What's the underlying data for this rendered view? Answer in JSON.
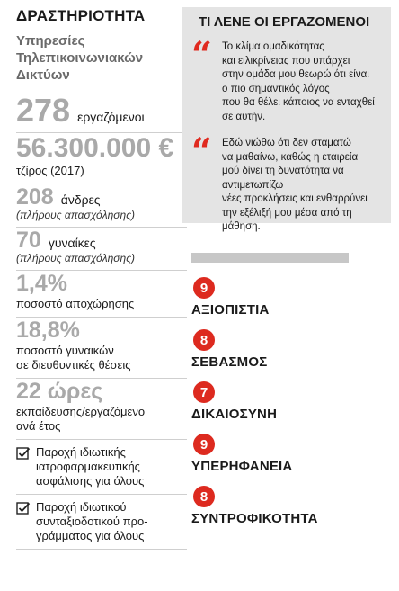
{
  "left": {
    "title": "ΔΡΑΣΤΗΡΙΟΤΗΤΑ",
    "subtitle_lines": [
      "Υπηρεσίες",
      "Τηλεπικοινωνιακών",
      "Δικτύων"
    ],
    "stats": [
      {
        "value": "278",
        "label": "εργαζόμενοι"
      },
      {
        "value": "56.300.000 €",
        "label": "τζίρος (2017)"
      },
      {
        "value": "208",
        "label": "άνδρες",
        "note": "(πλήρους απασχόλησης)"
      },
      {
        "value": "70",
        "label": "γυναίκες",
        "note": "(πλήρους απασχόλησης)"
      },
      {
        "value": "1,4%",
        "label": "ποσοστό αποχώρησης"
      },
      {
        "value": "18,8%",
        "label_lines": [
          "ποσοστό γυναικών",
          "σε διευθυντικές θέσεις"
        ]
      },
      {
        "value": "22 ώρες",
        "label_lines": [
          "εκπαίδευσης/εργαζόμενο",
          "ανά έτος"
        ]
      }
    ],
    "checks": [
      {
        "lines": [
          "Παροχή ιδιωτικής",
          "ιατροφαρμακευτικής",
          "ασφάλισης για όλους"
        ]
      },
      {
        "lines": [
          "Παροχή ιδιωτικού",
          "συνταξιοδοτικού προ-",
          "γράμματος για όλους"
        ]
      }
    ]
  },
  "right": {
    "box_title": "ΤΙ ΛΕΝΕ ΟΙ ΕΡΓΑΖΟΜΕΝΟΙ",
    "quote_mark": "“",
    "quotes": [
      {
        "lines": [
          "Το κλίμα ομαδικότητας",
          "και ειλικρίνειας που υπάρχει",
          "στην ομάδα μου θεωρώ ότι είναι",
          "ο πιο σημαντικός λόγος",
          "που θα θέλει κάποιος να ενταχθεί",
          "σε αυτήν."
        ]
      },
      {
        "lines": [
          "Εδώ νιώθω ότι δεν σταματώ",
          "να μαθαίνω, καθώς η εταιρεία",
          "μού δίνει τη δυνατότητα να αντιμετωπίζω",
          "νέες προκλήσεις και ενθαρρύνει",
          "την εξέλιξή μου μέσα από τη μάθηση."
        ]
      }
    ],
    "ratings": [
      {
        "score": "9",
        "label": "ΑΞΙΟΠΙΣΤΙΑ"
      },
      {
        "score": "8",
        "label": "ΣΕΒΑΣΜΟΣ"
      },
      {
        "score": "7",
        "label": "ΔΙΚΑΙΟΣΥΝΗ"
      },
      {
        "score": "9",
        "label": "ΥΠΕΡΗΦΑΝΕΙΑ"
      },
      {
        "score": "8",
        "label": "ΣΥΝΤΡΟΦΙΚΟΤΗΤΑ"
      }
    ],
    "colors": {
      "accent": "#dd2a1f",
      "box_bg": "#e4e4e4",
      "big_number": "#a9a9a9"
    }
  }
}
